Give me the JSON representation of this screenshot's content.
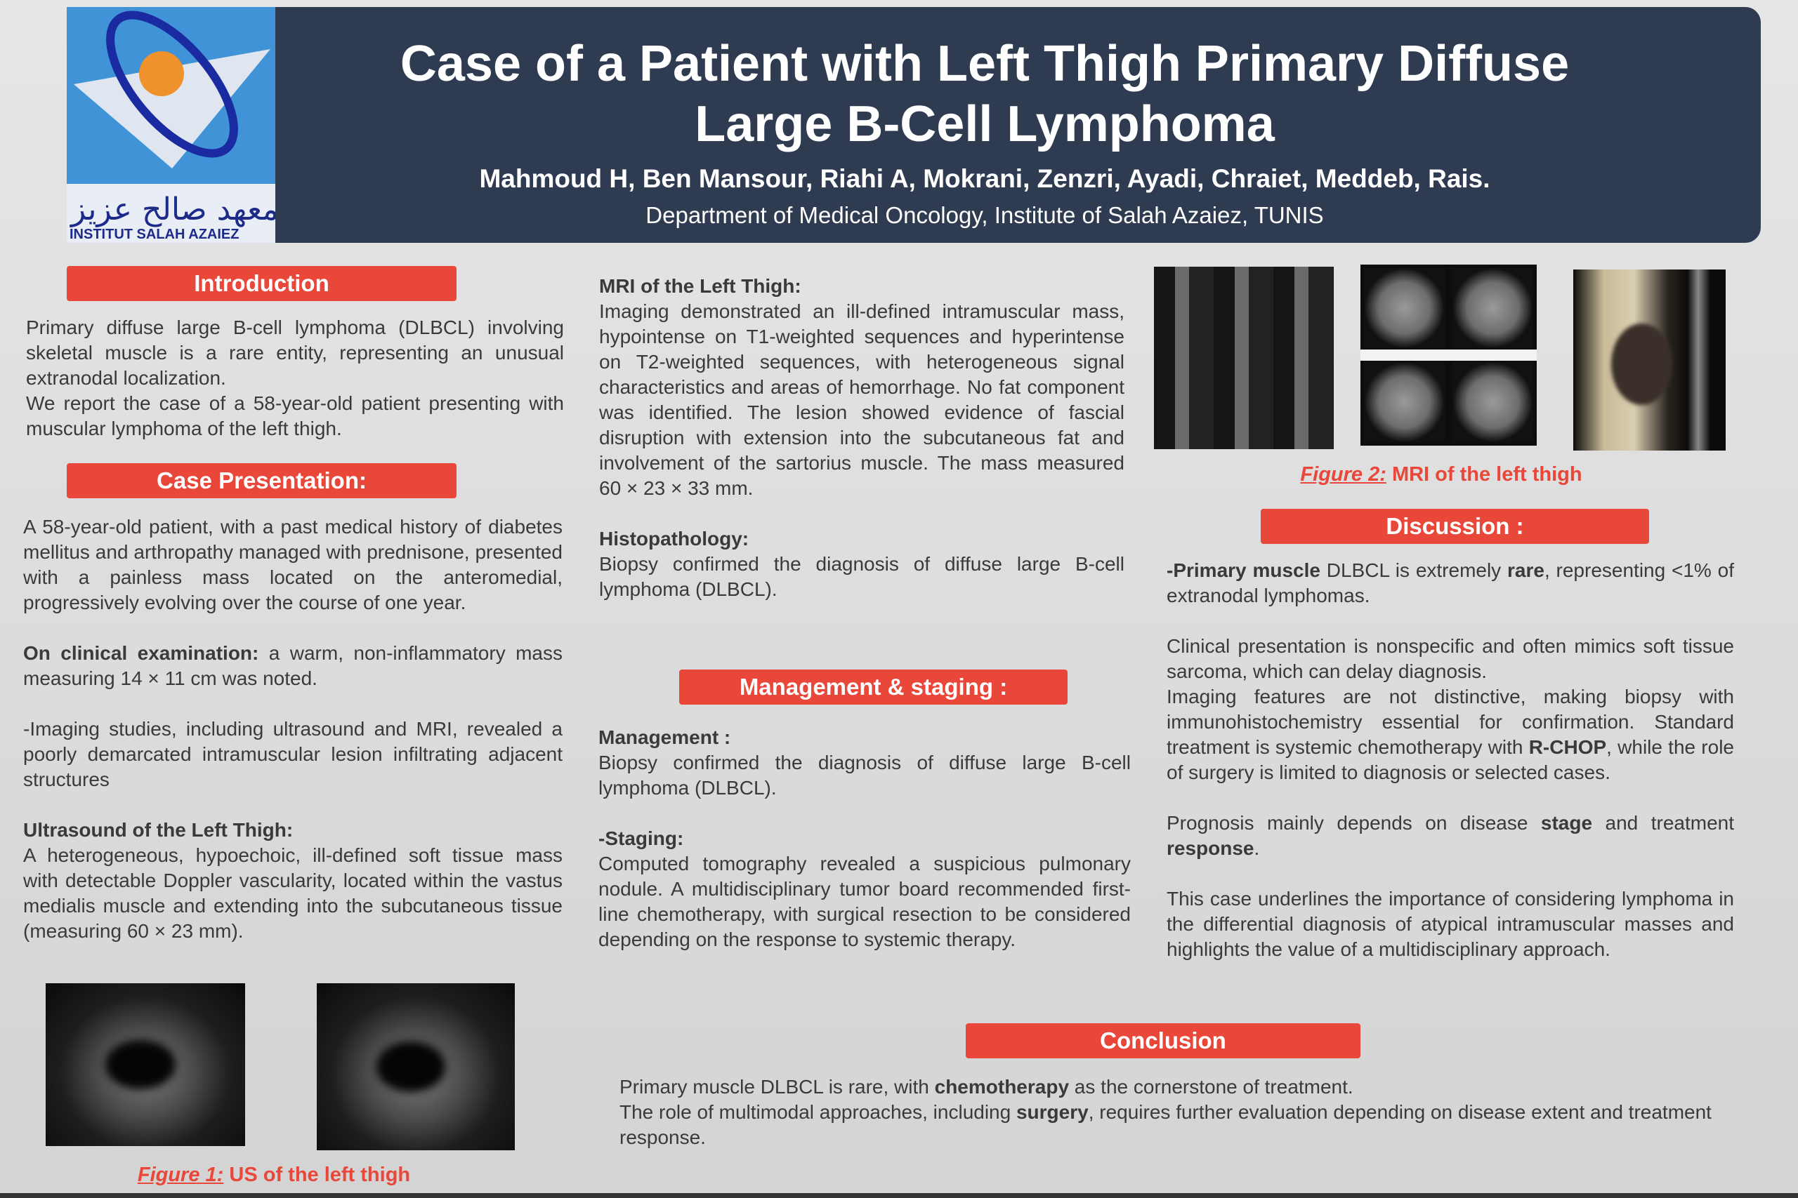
{
  "header": {
    "logo_text_arabic": "معهد صالح عزيز",
    "logo_text_latin": "INSTITUT SALAH AZAIEZ",
    "title_line1": "Case of a Patient with Left Thigh Primary Diffuse",
    "title_line2": "Large B-Cell Lymphoma",
    "authors": "Mahmoud H, Ben Mansour, Riahi A,  Mokrani, Zenzri,   Ayadi, Chraiet, Meddeb, Rais.",
    "affiliation": "Department of Medical Oncology, Institute of Salah Azaiez, TUNIS"
  },
  "colors": {
    "header_bg": "#2e3b50",
    "section_bar": "#e8473a",
    "text": "#3a3a3a"
  },
  "introduction": {
    "heading": "Introduction",
    "paragraphs": [
      [
        {
          "t": "Primary diffuse large B-cell lymphoma (DLBCL) involving skeletal muscle is a rare entity, representing an unusual extranodal localization."
        }
      ],
      [
        {
          "t": "We report the case of a 58-year-old patient presenting with muscular lymphoma of the left thigh."
        }
      ]
    ]
  },
  "case_presentation": {
    "heading": "Case Presentation:",
    "paragraphs": [
      [
        {
          "t": "A 58-year-old patient, with a past medical history of diabetes mellitus and arthropathy managed with prednisone, presented with a painless mass located on the anteromedial, progressively evolving over the course of one year."
        }
      ],
      [
        {
          "t": ""
        }
      ],
      [
        {
          "t": "On clinical examination:",
          "b": true
        },
        {
          "t": " a warm, non-inflammatory mass measuring 14 × 11 cm was noted."
        }
      ],
      [
        {
          "t": ""
        }
      ],
      [
        {
          "t": "-Imaging studies, including ultrasound and MRI, revealed a poorly demarcated intramuscular lesion infiltrating adjacent structures"
        }
      ],
      [
        {
          "t": ""
        }
      ],
      [
        {
          "t": "Ultrasound of the Left Thigh:",
          "b": true
        }
      ],
      [
        {
          "t": "A heterogeneous, hypoechoic, ill-defined soft tissue mass with detectable Doppler vascularity, located within the vastus medialis muscle and extending into the subcutaneous tissue (measuring 60 × 23 mm)."
        }
      ]
    ]
  },
  "figure1": {
    "label": "Figure 1:",
    "caption": " US of the left thigh"
  },
  "mri_section": {
    "paragraphs": [
      [
        {
          "t": "MRI of the Left Thigh:",
          "b": true
        }
      ],
      [
        {
          "t": "Imaging demonstrated an ill-defined intramuscular mass, hypointense on T1-weighted sequences and hyperintense on T2-weighted sequences, with heterogeneous signal characteristics and areas of hemorrhage. No fat component was identified. The lesion showed evidence of fascial disruption with extension into the subcutaneous fat and involvement of the sartorius muscle. The mass measured 60 × 23 × 33 mm."
        }
      ],
      [
        {
          "t": ""
        }
      ],
      [
        {
          "t": "Histopathology:",
          "b": true
        }
      ],
      [
        {
          "t": "Biopsy confirmed the diagnosis of diffuse large B-cell lymphoma (DLBCL)."
        }
      ]
    ]
  },
  "management": {
    "heading": "Management & staging :",
    "paragraphs": [
      [
        {
          "t": "Management :",
          "b": true
        }
      ],
      [
        {
          "t": "Biopsy confirmed the diagnosis of diffuse large B-cell lymphoma (DLBCL)."
        }
      ],
      [
        {
          "t": ""
        }
      ],
      [
        {
          "t": "-Staging:",
          "b": true
        }
      ],
      [
        {
          "t": "Computed tomography revealed a suspicious pulmonary nodule. A multidisciplinary tumor board recommended first-line chemotherapy, with surgical resection to be considered depending on the response to systemic therapy."
        }
      ]
    ]
  },
  "figure2": {
    "label": "Figure 2:",
    "caption": " MRI of the left thigh"
  },
  "discussion": {
    "heading": "Discussion :",
    "paragraphs": [
      [
        {
          "t": "-Primary ",
          "b": true
        },
        {
          "t": "muscle",
          "b": true
        },
        {
          "t": " DLBCL is extremely "
        },
        {
          "t": "rare",
          "b": true
        },
        {
          "t": ", representing <1% of extranodal lymphomas."
        }
      ],
      [
        {
          "t": ""
        }
      ],
      [
        {
          "t": "Clinical presentation is nonspecific and often mimics soft tissue sarcoma, which can delay diagnosis."
        }
      ],
      [
        {
          "t": "Imaging features are not distinctive, making biopsy with immunohistochemistry essential for confirmation. Standard treatment is systemic chemotherapy with "
        },
        {
          "t": "R-CHOP",
          "b": true
        },
        {
          "t": ", while the role of surgery is limited to diagnosis or selected cases."
        }
      ],
      [
        {
          "t": ""
        }
      ],
      [
        {
          "t": "Prognosis mainly depends on disease "
        },
        {
          "t": "stage",
          "b": true
        },
        {
          "t": " and treatment "
        },
        {
          "t": "response",
          "b": true
        },
        {
          "t": "."
        }
      ],
      [
        {
          "t": ""
        }
      ],
      [
        {
          "t": "This case underlines the importance of considering lymphoma in the differential diagnosis of atypical intramuscular masses and highlights the value of a multidisciplinary approach."
        }
      ]
    ]
  },
  "conclusion": {
    "heading": "Conclusion",
    "paragraphs": [
      [
        {
          "t": "Primary muscle DLBCL is rare, with "
        },
        {
          "t": "chemotherapy",
          "b": true
        },
        {
          "t": " as the cornerstone of treatment."
        }
      ],
      [
        {
          "t": "The role of multimodal approaches, including "
        },
        {
          "t": "surgery",
          "b": true
        },
        {
          "t": ", requires further evaluation depending on disease extent and treatment response."
        }
      ]
    ]
  }
}
